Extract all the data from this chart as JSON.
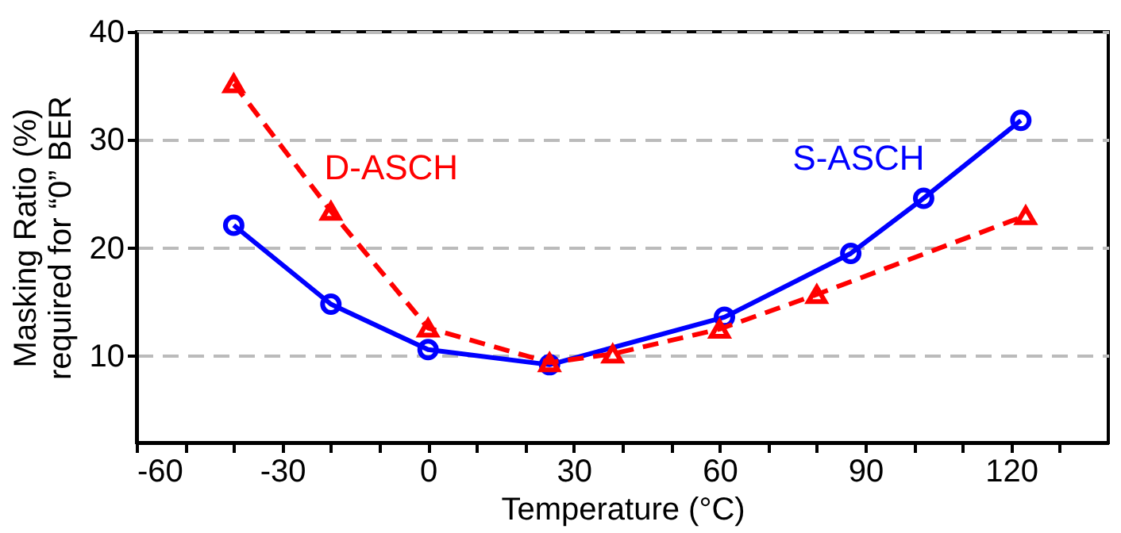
{
  "chart_data": {
    "type": "line",
    "xlabel": "Temperature (°C)",
    "ylabel": "Masking Ratio (%)\nrequired for “0” BER",
    "xlim": [
      -60,
      140
    ],
    "ylim": [
      2,
      40
    ],
    "xticks": [
      -60,
      {
        "value": -50,
        "label": null
      },
      {
        "value": -40,
        "label": null
      },
      -30,
      {
        "value": -20,
        "label": null
      },
      {
        "value": -10,
        "label": null
      },
      0,
      {
        "value": 10,
        "label": null
      },
      {
        "value": 20,
        "label": null
      },
      30,
      {
        "value": 40,
        "label": null
      },
      {
        "value": 50,
        "label": null
      },
      60,
      {
        "value": 70,
        "label": null
      },
      {
        "value": 80,
        "label": null
      },
      90,
      {
        "value": 100,
        "label": null
      },
      {
        "value": 110,
        "label": null
      },
      120,
      {
        "value": 130,
        "label": null
      }
    ],
    "yticks": [
      10,
      20,
      30,
      40
    ],
    "grid": "y",
    "legend": false,
    "series": [
      {
        "name": "S-ASCH",
        "color": "#0000ff",
        "marker": "circle",
        "line_style": "solid",
        "x": [
          -40,
          -20,
          0,
          25,
          61,
          87,
          102,
          122
        ],
        "values": [
          22.1,
          14.8,
          10.6,
          9.2,
          13.6,
          19.5,
          24.6,
          31.8
        ]
      },
      {
        "name": "D-ASCH",
        "color": "#ff0000",
        "marker": "triangle",
        "line_style": "dashed",
        "x": [
          -40,
          -20,
          0,
          25,
          38,
          60,
          80,
          123
        ],
        "values": [
          35.2,
          23.4,
          12.6,
          9.4,
          10.2,
          12.5,
          15.7,
          23.0
        ]
      }
    ]
  }
}
